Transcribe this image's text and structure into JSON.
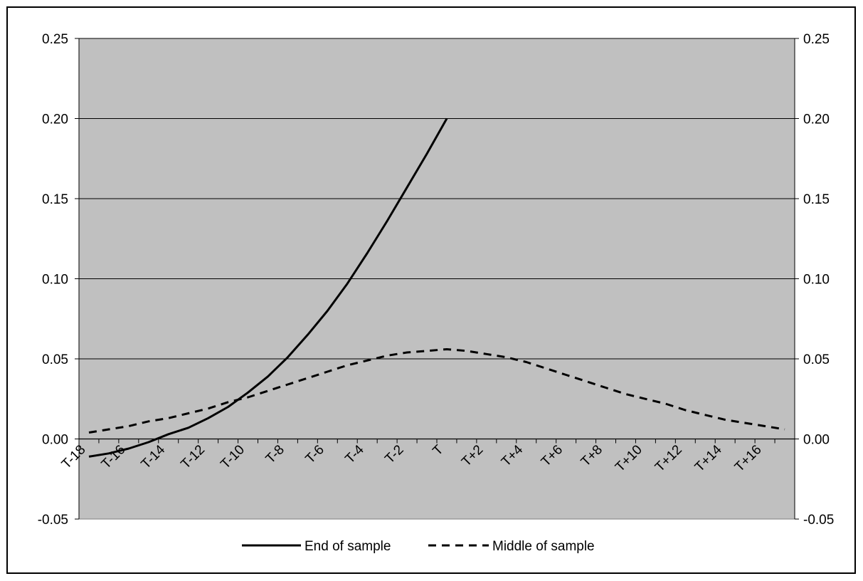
{
  "chart_data": {
    "type": "line",
    "title": "",
    "xlabel": "",
    "ylabel": "",
    "ylim": [
      -0.05,
      0.25
    ],
    "y_ticks": [
      -0.05,
      0.0,
      0.05,
      0.1,
      0.15,
      0.2,
      0.25
    ],
    "y_tick_labels": [
      "-0.05",
      "0.00",
      "0.05",
      "0.10",
      "0.15",
      "0.20",
      "0.25"
    ],
    "secondary_y_axis": true,
    "grid": "horizontal",
    "plot_background": "#c0c0c0",
    "legend_position": "bottom",
    "x_tick_labels": [
      "T-18",
      "T-16",
      "T-14",
      "T-12",
      "T-10",
      "T-8",
      "T-6",
      "T-4",
      "T-2",
      "T",
      "T+2",
      "T+4",
      "T+6",
      "T+8",
      "T+10",
      "T+12",
      "T+14",
      "T+16"
    ],
    "x": [
      -18,
      -17,
      -16,
      -15,
      -14,
      -13,
      -12,
      -11,
      -10,
      -9,
      -8,
      -7,
      -6,
      -5,
      -4,
      -3,
      -2,
      -1,
      0,
      1,
      2,
      3,
      4,
      5,
      6,
      7,
      8,
      9,
      10,
      11,
      12,
      13,
      14,
      15,
      16,
      17
    ],
    "series": [
      {
        "name": "End of sample",
        "style": "solid",
        "color": "#000000",
        "values": [
          -0.011,
          -0.009,
          -0.006,
          -0.002,
          0.003,
          0.007,
          0.013,
          0.02,
          0.029,
          0.039,
          0.051,
          0.065,
          0.08,
          0.097,
          0.116,
          0.136,
          0.157,
          0.178,
          0.2,
          null,
          null,
          null,
          null,
          null,
          null,
          null,
          null,
          null,
          null,
          null,
          null,
          null,
          null,
          null,
          null,
          null
        ]
      },
      {
        "name": "Middle of sample",
        "style": "dashed",
        "color": "#000000",
        "values": [
          0.004,
          0.006,
          0.008,
          0.011,
          0.013,
          0.016,
          0.019,
          0.023,
          0.026,
          0.03,
          0.034,
          0.038,
          0.042,
          0.046,
          0.049,
          0.052,
          0.054,
          0.055,
          0.056,
          0.055,
          0.053,
          0.051,
          0.048,
          0.044,
          0.04,
          0.036,
          0.032,
          0.028,
          0.025,
          0.022,
          0.018,
          0.015,
          0.012,
          0.01,
          0.008,
          0.006
        ]
      }
    ]
  }
}
